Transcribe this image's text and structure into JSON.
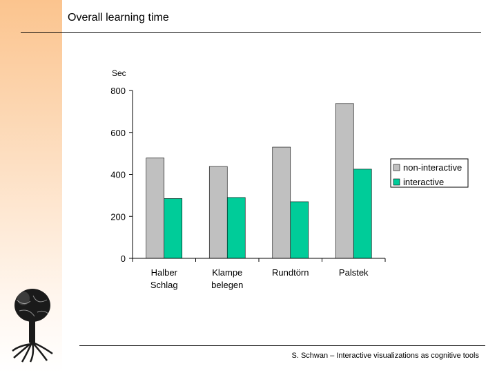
{
  "slide": {
    "title": "Overall learning time",
    "footer": "S. Schwan – Interactive visualizations as cognitive tools"
  },
  "icons": {
    "logo": "tree-logo-icon"
  },
  "chart_data": {
    "type": "bar",
    "ylabel": "Sec",
    "ylim": [
      0,
      800
    ],
    "yticks": [
      0,
      200,
      400,
      600,
      800
    ],
    "categories": [
      [
        "Halber",
        "Schlag"
      ],
      [
        "Klampe",
        "belegen"
      ],
      [
        "Rundtörn"
      ],
      [
        "Palstek"
      ]
    ],
    "series": [
      {
        "name": "non-interactive",
        "color": "#c0c0c0",
        "values": [
          478,
          438,
          530,
          738
        ]
      },
      {
        "name": "interactive",
        "color": "#00cc99",
        "values": [
          285,
          290,
          270,
          425
        ]
      }
    ],
    "legend_position": "right",
    "grid": false
  }
}
